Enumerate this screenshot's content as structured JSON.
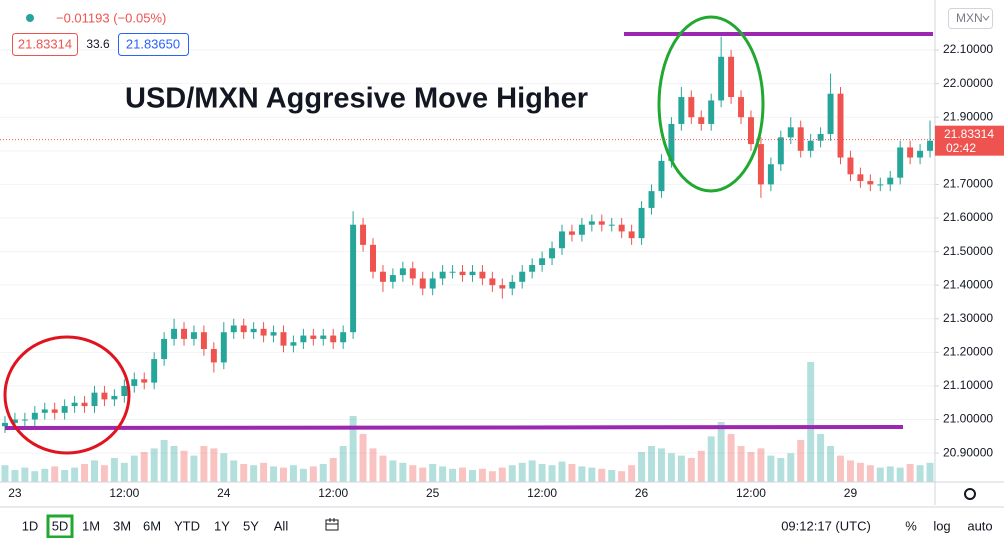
{
  "chart_data": {
    "type": "candlestick",
    "title": "USD/MXN Aggresive Move Higher",
    "categories": [
      null,
      "23",
      null,
      null,
      null,
      null,
      null,
      null,
      null,
      null,
      null,
      null,
      "12:00",
      null,
      null,
      null,
      null,
      null,
      null,
      null,
      null,
      null,
      "24",
      null,
      null,
      null,
      null,
      null,
      null,
      null,
      null,
      null,
      null,
      "12:00",
      null,
      null,
      null,
      null,
      null,
      null,
      null,
      null,
      null,
      "25",
      null,
      null,
      null,
      null,
      null,
      null,
      null,
      null,
      null,
      null,
      "12:00",
      null,
      null,
      null,
      null,
      null,
      null,
      null,
      null,
      null,
      "26",
      null,
      null,
      null,
      null,
      null,
      null,
      null,
      null,
      null,
      null,
      "12:00",
      null,
      null,
      null,
      null,
      null,
      null,
      null,
      null,
      null,
      "29",
      null,
      null,
      null,
      null,
      null,
      null,
      null,
      null
    ],
    "open": [
      20.98,
      20.99,
      21.0,
      21.0,
      21.02,
      21.03,
      21.02,
      21.04,
      21.05,
      21.04,
      21.08,
      21.06,
      21.07,
      21.1,
      21.12,
      21.11,
      21.18,
      21.24,
      21.27,
      21.24,
      21.26,
      21.21,
      21.17,
      21.26,
      21.28,
      21.26,
      21.27,
      21.25,
      21.26,
      21.22,
      21.23,
      21.25,
      21.24,
      21.25,
      21.23,
      21.26,
      21.58,
      21.52,
      21.44,
      21.41,
      21.43,
      21.45,
      21.42,
      21.39,
      21.42,
      21.44,
      21.44,
      21.43,
      21.44,
      21.42,
      21.4,
      21.39,
      21.41,
      21.44,
      21.46,
      21.48,
      21.51,
      21.56,
      21.55,
      21.58,
      21.59,
      21.58,
      21.58,
      21.56,
      21.54,
      21.63,
      21.68,
      21.77,
      21.88,
      21.96,
      21.9,
      21.88,
      21.95,
      22.08,
      21.96,
      21.9,
      21.82,
      21.7,
      21.76,
      21.84,
      21.87,
      21.8,
      21.83,
      21.85,
      21.97,
      21.78,
      21.73,
      21.71,
      21.7,
      21.7,
      21.72,
      21.81,
      21.78,
      21.8
    ],
    "high": [
      21.01,
      21.02,
      21.02,
      21.04,
      21.05,
      21.05,
      21.06,
      21.07,
      21.07,
      21.1,
      21.1,
      21.09,
      21.12,
      21.14,
      21.14,
      21.2,
      21.26,
      21.3,
      21.29,
      21.28,
      21.28,
      21.23,
      21.29,
      21.3,
      21.3,
      21.29,
      21.29,
      21.28,
      21.28,
      21.25,
      21.27,
      21.27,
      21.27,
      21.27,
      21.28,
      21.62,
      21.6,
      21.54,
      21.46,
      21.45,
      21.47,
      21.47,
      21.44,
      21.44,
      21.46,
      21.46,
      21.46,
      21.46,
      21.46,
      21.44,
      21.42,
      21.43,
      21.46,
      21.48,
      21.5,
      21.53,
      21.58,
      21.58,
      21.6,
      21.61,
      21.61,
      21.6,
      21.6,
      21.58,
      21.65,
      21.7,
      21.79,
      21.9,
      21.99,
      21.98,
      21.92,
      21.97,
      22.14,
      22.1,
      21.98,
      21.92,
      21.84,
      21.78,
      21.86,
      21.9,
      21.89,
      21.85,
      21.87,
      22.03,
      21.99,
      21.8,
      21.75,
      21.73,
      21.72,
      21.74,
      21.83,
      21.83,
      21.82,
      21.89
    ],
    "low": [
      20.96,
      20.97,
      20.98,
      20.98,
      21.0,
      21.0,
      21.0,
      21.02,
      21.02,
      21.02,
      21.04,
      21.04,
      21.05,
      21.08,
      21.09,
      21.09,
      21.16,
      21.22,
      21.22,
      21.22,
      21.19,
      21.14,
      21.15,
      21.24,
      21.24,
      21.24,
      21.23,
      21.23,
      21.2,
      21.2,
      21.21,
      21.22,
      21.22,
      21.21,
      21.21,
      21.24,
      21.5,
      21.42,
      21.38,
      21.39,
      21.41,
      21.4,
      21.37,
      21.37,
      21.4,
      21.42,
      21.41,
      21.41,
      21.4,
      21.38,
      21.36,
      21.37,
      21.39,
      21.42,
      21.44,
      21.46,
      21.49,
      21.53,
      21.53,
      21.56,
      21.56,
      21.56,
      21.54,
      21.52,
      21.52,
      21.61,
      21.66,
      21.75,
      21.86,
      21.88,
      21.86,
      21.86,
      21.93,
      21.94,
      21.88,
      21.8,
      21.66,
      21.68,
      21.74,
      21.82,
      21.78,
      21.78,
      21.81,
      21.83,
      21.76,
      21.71,
      21.69,
      21.68,
      21.68,
      21.68,
      21.7,
      21.76,
      21.76,
      21.78
    ],
    "close": [
      20.99,
      21.0,
      21.0,
      21.02,
      21.03,
      21.02,
      21.04,
      21.05,
      21.04,
      21.08,
      21.06,
      21.07,
      21.1,
      21.12,
      21.11,
      21.18,
      21.24,
      21.27,
      21.24,
      21.26,
      21.21,
      21.17,
      21.26,
      21.28,
      21.26,
      21.27,
      21.25,
      21.26,
      21.22,
      21.23,
      21.25,
      21.24,
      21.25,
      21.23,
      21.26,
      21.58,
      21.52,
      21.44,
      21.41,
      21.43,
      21.45,
      21.42,
      21.39,
      21.42,
      21.44,
      21.44,
      21.43,
      21.44,
      21.42,
      21.4,
      21.39,
      21.41,
      21.44,
      21.46,
      21.48,
      21.51,
      21.56,
      21.55,
      21.58,
      21.59,
      21.58,
      21.58,
      21.56,
      21.54,
      21.63,
      21.68,
      21.77,
      21.88,
      21.96,
      21.9,
      21.88,
      21.95,
      22.08,
      21.96,
      21.9,
      21.82,
      21.7,
      21.76,
      21.84,
      21.87,
      21.8,
      21.83,
      21.85,
      21.97,
      21.78,
      21.73,
      21.71,
      21.7,
      21.7,
      21.72,
      21.81,
      21.78,
      21.8,
      21.83
    ],
    "volume": [
      14,
      10,
      12,
      9,
      11,
      13,
      10,
      12,
      15,
      18,
      14,
      20,
      16,
      22,
      25,
      28,
      35,
      30,
      26,
      22,
      30,
      28,
      24,
      18,
      15,
      14,
      16,
      13,
      12,
      14,
      11,
      13,
      15,
      20,
      30,
      55,
      40,
      28,
      22,
      18,
      16,
      14,
      12,
      15,
      13,
      11,
      12,
      10,
      11,
      9,
      12,
      14,
      16,
      18,
      15,
      14,
      17,
      15,
      13,
      12,
      11,
      10,
      9,
      14,
      25,
      30,
      28,
      24,
      22,
      20,
      26,
      38,
      50,
      40,
      30,
      25,
      28,
      22,
      20,
      24,
      35,
      100,
      40,
      30,
      22,
      18,
      16,
      14,
      12,
      13,
      12,
      15,
      14,
      16
    ],
    "up_color": "#26a69a",
    "down_color": "#ef5350",
    "ylim": [
      20.814,
      22.249
    ],
    "yticks": [
      {
        "value": 20.9,
        "label": "20.90000"
      },
      {
        "value": 21.0,
        "label": "21.00000"
      },
      {
        "value": 21.1,
        "label": "21.10000"
      },
      {
        "value": 21.2,
        "label": "21.20000"
      },
      {
        "value": 21.3,
        "label": "21.30000"
      },
      {
        "value": 21.4,
        "label": "21.40000"
      },
      {
        "value": 21.5,
        "label": "21.50000"
      },
      {
        "value": 21.6,
        "label": "21.60000"
      },
      {
        "value": 21.7,
        "label": "21.70000"
      },
      {
        "value": 21.8,
        "label": "21.80000"
      },
      {
        "value": 21.9,
        "label": "21.90000"
      },
      {
        "value": 22.0,
        "label": "22.00000"
      },
      {
        "value": 22.1,
        "label": "22.10000"
      }
    ],
    "grid": true,
    "last_price": {
      "value": 21.83314,
      "label": "21.83314",
      "countdown": "02:42"
    },
    "currency": "MXN"
  },
  "header": {
    "change": "−0.01193 (−0.05%)",
    "bid": "21.83314",
    "spread": "33.6",
    "ask": "21.83650"
  },
  "toolbar": {
    "ranges": [
      {
        "label": "1D",
        "selected": false
      },
      {
        "label": "5D",
        "selected": true
      },
      {
        "label": "1M",
        "selected": false
      },
      {
        "label": "3M",
        "selected": false
      },
      {
        "label": "6M",
        "selected": false
      },
      {
        "label": "YTD",
        "selected": false
      },
      {
        "label": "1Y",
        "selected": false
      },
      {
        "label": "5Y",
        "selected": false
      },
      {
        "label": "All",
        "selected": false
      }
    ],
    "time": "09:12:17 (UTC)",
    "percent": "%",
    "log": "log",
    "auto": "auto"
  }
}
